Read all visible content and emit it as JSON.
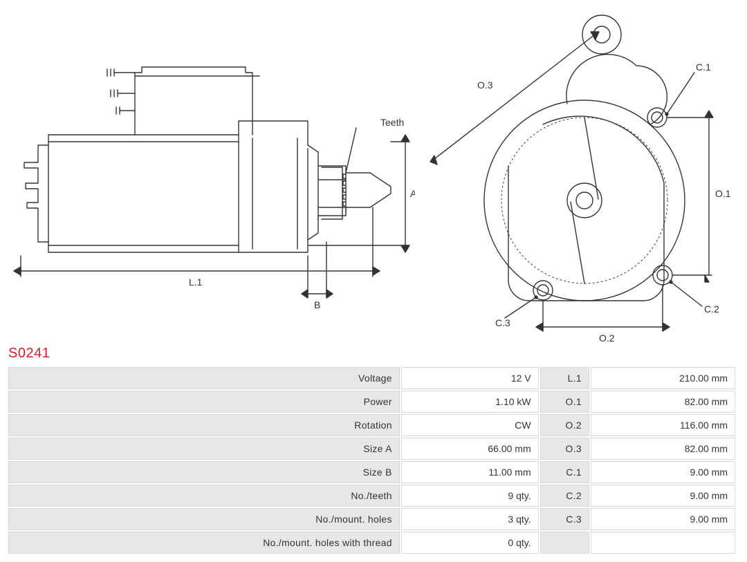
{
  "title": "S0241",
  "diagram_labels": {
    "teeth": "Teeth",
    "A": "A",
    "B": "B",
    "L1": "L.1",
    "O1": "O.1",
    "O2": "O.2",
    "O3": "O.3",
    "C1": "C.1",
    "C2": "C.2",
    "C3": "C.3"
  },
  "style": {
    "title_color": "#d01f2f",
    "label_bg": "#e7e7e7",
    "cell_bg": "#ffffff",
    "border_color": "#d8d8d8",
    "text_color": "#333333",
    "stroke_color": "#333333",
    "stroke_width": 1.4,
    "font_size_table": 14,
    "font_size_title": 20,
    "font_size_diagram_label": 14
  },
  "specs_left": [
    {
      "label": "Voltage",
      "value": "12 V"
    },
    {
      "label": "Power",
      "value": "1.10 kW"
    },
    {
      "label": "Rotation",
      "value": "CW"
    },
    {
      "label": "Size A",
      "value": "66.00 mm"
    },
    {
      "label": "Size B",
      "value": "11.00 mm"
    },
    {
      "label": "No./teeth",
      "value": "9 qty."
    },
    {
      "label": "No./mount. holes",
      "value": "3 qty."
    },
    {
      "label": "No./mount. holes with thread",
      "value": "0 qty."
    }
  ],
  "specs_right": [
    {
      "label": "L.1",
      "value": "210.00 mm"
    },
    {
      "label": "O.1",
      "value": "82.00 mm"
    },
    {
      "label": "O.2",
      "value": "116.00 mm"
    },
    {
      "label": "O.3",
      "value": "82.00 mm"
    },
    {
      "label": "C.1",
      "value": "9.00 mm"
    },
    {
      "label": "C.2",
      "value": "9.00 mm"
    },
    {
      "label": "C.3",
      "value": "9.00 mm"
    },
    {
      "label": "",
      "value": ""
    }
  ]
}
